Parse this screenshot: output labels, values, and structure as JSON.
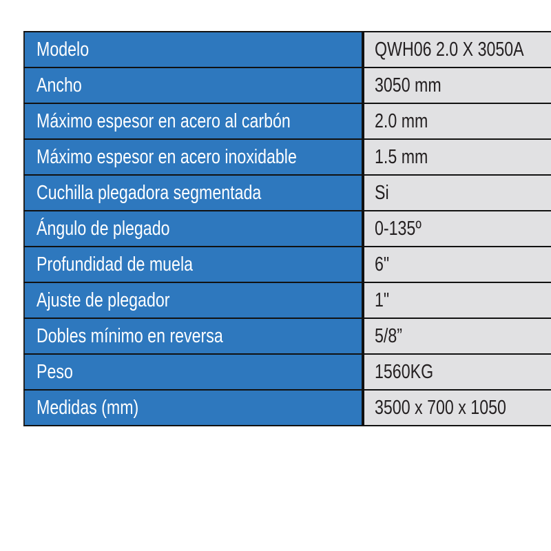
{
  "colors": {
    "label_bg": "#2e78be",
    "value_bg": "#e1e1e3",
    "border": "#111111"
  },
  "rows": [
    {
      "label": "Modelo",
      "value": "QWH06 2.0 X 3050A"
    },
    {
      "label": "Ancho",
      "value": "3050 mm"
    },
    {
      "label": "Máximo espesor en acero al carbón",
      "value": "2.0 mm"
    },
    {
      "label": "Máximo espesor en acero inoxidable",
      "value": "1.5 mm"
    },
    {
      "label": "Cuchilla plegadora segmentada",
      "value": "Si"
    },
    {
      "label": "Ángulo de plegado",
      "value": "0-135º"
    },
    {
      "label": "Profundidad de muela",
      "value": "6\""
    },
    {
      "label": "Ajuste de plegador",
      "value": "1\""
    },
    {
      "label": "Dobles mínimo en reversa",
      "value": "5/8”"
    },
    {
      "label": "Peso",
      "value": "1560KG"
    },
    {
      "label": "Medidas (mm)",
      "value": "3500 x 700 x 1050"
    }
  ]
}
